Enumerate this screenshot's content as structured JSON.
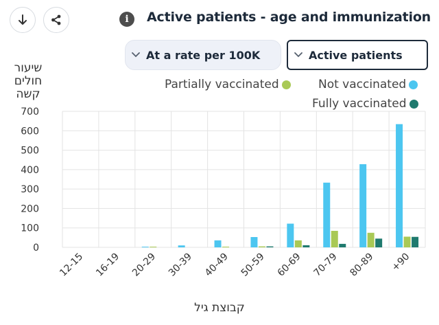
{
  "toolbar": {
    "download_icon": "download-arrow-icon",
    "share_icon": "share-icon",
    "info_icon": "info-icon",
    "info_glyph": "i"
  },
  "header": {
    "title": "Active patients - age and immunization"
  },
  "filters": {
    "rate_label": "At a rate per 100K",
    "measure_label": "Active patients"
  },
  "chart_data": {
    "type": "bar",
    "title": "Active patients - age and immunization",
    "ylabel_lines": [
      "שיעור",
      "חולים",
      "קשה"
    ],
    "xlabel": "קבוצת גיל",
    "categories": [
      "12-15",
      "16-19",
      "20-29",
      "30-39",
      "40-49",
      "50-59",
      "60-69",
      "70-79",
      "80-89",
      "+90"
    ],
    "ylim": [
      0,
      700
    ],
    "yticks": [
      0,
      100,
      200,
      300,
      400,
      500,
      600,
      700
    ],
    "grid": true,
    "legend_position": "top-right",
    "series": [
      {
        "name": "Not vaccinated",
        "color": "#4cc6f0",
        "values": [
          0,
          0,
          3,
          10,
          36,
          53,
          122,
          333,
          428,
          634
        ]
      },
      {
        "name": "Partially vaccinated",
        "color": "#a9c955",
        "values": [
          0,
          0,
          3,
          0,
          3,
          5,
          36,
          85,
          75,
          55
        ]
      },
      {
        "name": "Fully vaccinated",
        "color": "#1f7a6e",
        "values": [
          0,
          0,
          0,
          0,
          0,
          5,
          11,
          18,
          45,
          54
        ]
      }
    ]
  }
}
